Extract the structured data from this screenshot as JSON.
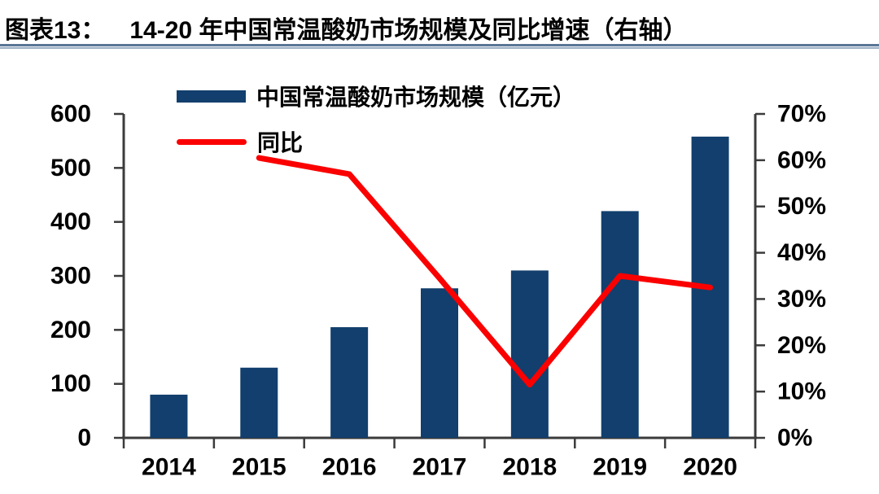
{
  "title": {
    "label": "图表13：",
    "text": "14-20 年中国常温酸奶市场规模及同比增速（右轴）"
  },
  "colors": {
    "bar": "#123f6d",
    "line": "#fb0000",
    "axis": "#3b3b3b",
    "text": "#000000",
    "underline_dark": "#5a7694",
    "underline_light": "#9db1c6"
  },
  "legend": [
    {
      "name": "中国常温酸奶市场规模（亿元）",
      "type": "bar"
    },
    {
      "name": "同比",
      "type": "line"
    }
  ],
  "chart_data": {
    "type": "bar+line combo",
    "categories": [
      "2014",
      "2015",
      "2016",
      "2017",
      "2018",
      "2019",
      "2020"
    ],
    "series": [
      {
        "name": "中国常温酸奶市场规模（亿元）",
        "type": "bar",
        "axis": "left",
        "color": "#123f6d",
        "values": [
          80,
          130,
          205,
          277,
          310,
          420,
          558
        ]
      },
      {
        "name": "同比",
        "type": "line",
        "axis": "right",
        "color": "#fb0000",
        "values": [
          null,
          60.5,
          57,
          34.5,
          11.5,
          35,
          32.5
        ]
      }
    ],
    "left_axis": {
      "min": 0,
      "max": 600,
      "step": 100,
      "ticks": [
        "0",
        "100",
        "200",
        "300",
        "400",
        "500",
        "600"
      ]
    },
    "right_axis": {
      "min": 0,
      "max": 70,
      "step": 10,
      "ticks": [
        "0%",
        "10%",
        "20%",
        "30%",
        "40%",
        "50%",
        "60%",
        "70%"
      ]
    },
    "grid": false,
    "legend_position": "top-left"
  }
}
